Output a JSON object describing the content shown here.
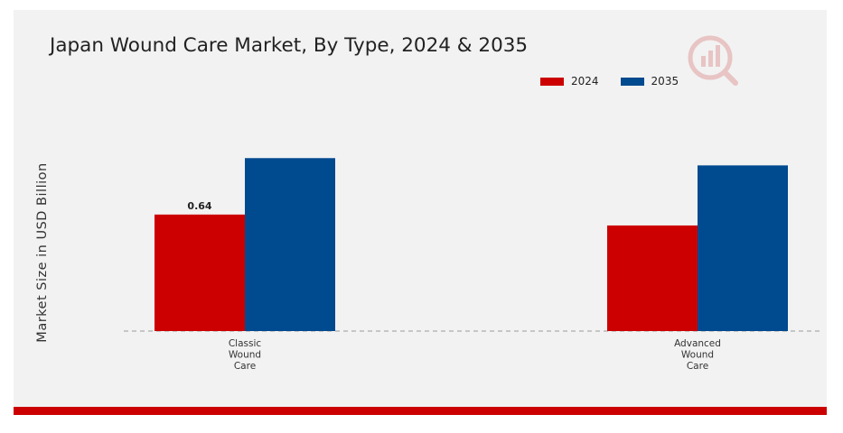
{
  "chart_data": {
    "type": "bar",
    "title": "Japan Wound Care Market, By Type, 2024 & 2035",
    "ylabel": "Market Size in USD Billion",
    "xlabel": "",
    "categories": [
      "Classic\nWound\nCare",
      "Advanced\nWound\nCare"
    ],
    "series": [
      {
        "name": "2024",
        "color": "#cc0000",
        "values": [
          0.64,
          0.58
        ]
      },
      {
        "name": "2035",
        "color": "#004a8f",
        "values": [
          0.95,
          0.91
        ]
      }
    ],
    "data_labels": [
      {
        "series": 0,
        "category": 0,
        "text": "0.64"
      }
    ],
    "ylim": [
      0,
      1.1
    ],
    "grid": false,
    "legend_position": "top-right"
  },
  "colors": {
    "panel_background": "#f2f2f2",
    "bottom_bar": "#cc0000",
    "baseline": "#999999"
  },
  "icons": {
    "logo": "watermark-logo-icon"
  }
}
